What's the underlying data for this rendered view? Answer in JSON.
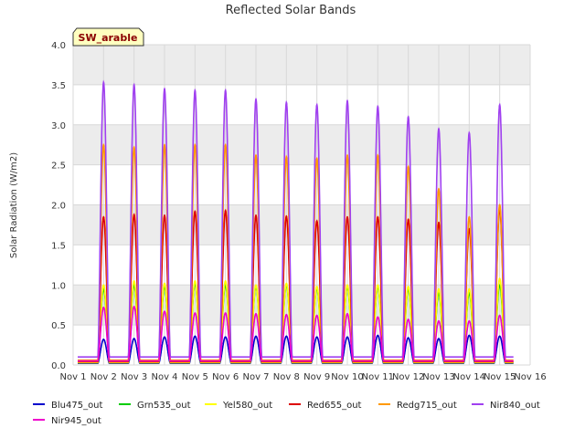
{
  "chart_data": {
    "type": "line",
    "title": "Reflected Solar Bands",
    "xlabel": "",
    "ylabel": "Solar Radiation (W/m2)",
    "ylim": [
      0,
      4.0
    ],
    "xlim": [
      1,
      16
    ],
    "x_ticks": [
      1,
      2,
      3,
      4,
      5,
      6,
      7,
      8,
      9,
      10,
      11,
      12,
      13,
      14,
      15,
      16
    ],
    "x_tick_labels": [
      "Nov 1",
      "Nov 2",
      "Nov 3",
      "Nov 4",
      "Nov 5",
      "Nov 6",
      "Nov 7",
      "Nov 8",
      "Nov 9",
      "Nov 10",
      "Nov 11",
      "Nov 12",
      "Nov 13",
      "Nov 14",
      "Nov 15",
      "Nov 16"
    ],
    "y_ticks": [
      0.0,
      0.5,
      1.0,
      1.5,
      2.0,
      2.5,
      3.0,
      3.5,
      4.0
    ],
    "y_tick_labels": [
      "0.0",
      "0.5",
      "1.0",
      "1.5",
      "2.0",
      "2.5",
      "3.0",
      "3.5",
      "4.0"
    ],
    "grid": true,
    "legend_position": "bottom",
    "annotation": "SW_arable",
    "day_peak_x": [
      2.0,
      3.0,
      4.0,
      5.0,
      6.0,
      7.0,
      8.0,
      9.0,
      10.0,
      11.0,
      12.0,
      13.0,
      14.0,
      15.0
    ],
    "series": [
      {
        "name": "Blu475_out",
        "color": "#0000cc",
        "night": 0.02,
        "peaks": [
          0.32,
          0.33,
          0.35,
          0.36,
          0.35,
          0.36,
          0.36,
          0.35,
          0.35,
          0.37,
          0.34,
          0.33,
          0.37,
          0.36
        ]
      },
      {
        "name": "Grn535_out",
        "color": "#00cc00",
        "night": 0.03,
        "peaks": [
          0.95,
          1.0,
          0.98,
          1.02,
          1.0,
          0.98,
          1.0,
          0.96,
          0.98,
          0.98,
          0.95,
          0.9,
          0.9,
          1.0
        ]
      },
      {
        "name": "Yel580_out",
        "color": "#ffff00",
        "night": 0.03,
        "peaks": [
          1.0,
          1.05,
          1.02,
          1.05,
          1.05,
          1.0,
          1.02,
          0.98,
          1.0,
          1.0,
          0.98,
          0.95,
          0.95,
          1.08
        ]
      },
      {
        "name": "Red655_out",
        "color": "#dd0000",
        "night": 0.04,
        "peaks": [
          1.85,
          1.88,
          1.87,
          1.92,
          1.93,
          1.87,
          1.86,
          1.8,
          1.85,
          1.85,
          1.82,
          1.78,
          1.7,
          1.95
        ]
      },
      {
        "name": "Redg715_out",
        "color": "#ff9900",
        "night": 0.06,
        "peaks": [
          2.75,
          2.72,
          2.75,
          2.75,
          2.75,
          2.62,
          2.6,
          2.58,
          2.62,
          2.62,
          2.48,
          2.2,
          1.85,
          2.0
        ]
      },
      {
        "name": "Nir840_out",
        "color": "#a040f0",
        "night": 0.1,
        "peaks": [
          3.53,
          3.5,
          3.45,
          3.43,
          3.43,
          3.32,
          3.28,
          3.25,
          3.3,
          3.23,
          3.1,
          2.95,
          2.9,
          3.25
        ]
      },
      {
        "name": "Nir945_out",
        "color": "#ee00cc",
        "night": 0.05,
        "peaks": [
          0.72,
          0.73,
          0.67,
          0.65,
          0.65,
          0.64,
          0.63,
          0.62,
          0.64,
          0.6,
          0.57,
          0.55,
          0.55,
          0.62
        ]
      }
    ]
  }
}
